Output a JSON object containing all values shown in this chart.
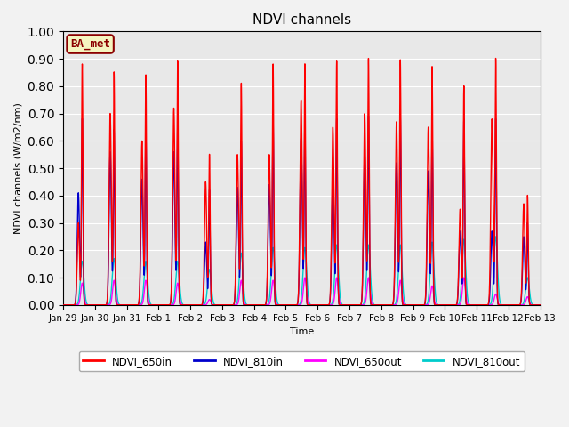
{
  "title": "NDVI channels",
  "ylabel": "NDVI channels (W/m2/nm)",
  "xlabel": "Time",
  "ylim": [
    0.0,
    1.0
  ],
  "yticks": [
    0.0,
    0.1,
    0.2,
    0.3,
    0.4,
    0.5,
    0.6,
    0.7,
    0.8,
    0.9,
    1.0
  ],
  "axes_facecolor": "#e8e8e8",
  "fig_facecolor": "#f2f2f2",
  "annotation_text": "BA_met",
  "annotation_color": "#8b0000",
  "annotation_bg": "#f5f5c0",
  "colors": {
    "NDVI_650in": "#ff0000",
    "NDVI_810in": "#0000cc",
    "NDVI_650out": "#ff00ff",
    "NDVI_810out": "#00cccc"
  },
  "num_days": 15,
  "peaks_650in": [
    0.88,
    0.85,
    0.84,
    0.89,
    0.55,
    0.81,
    0.88,
    0.88,
    0.89,
    0.9,
    0.895,
    0.87,
    0.8,
    0.9,
    0.4
  ],
  "peaks_810in": [
    0.68,
    0.64,
    0.64,
    0.67,
    0.42,
    0.6,
    0.67,
    0.68,
    0.68,
    0.69,
    0.69,
    0.66,
    0.68,
    0.68,
    0.3
  ],
  "peaks_650out": [
    0.08,
    0.09,
    0.09,
    0.08,
    0.02,
    0.09,
    0.09,
    0.1,
    0.1,
    0.1,
    0.09,
    0.07,
    0.1,
    0.04,
    0.03
  ],
  "peaks_810out": [
    0.16,
    0.17,
    0.16,
    0.16,
    0.13,
    0.19,
    0.21,
    0.21,
    0.22,
    0.22,
    0.22,
    0.23,
    0.24,
    0.25,
    0.1
  ],
  "secondary_650in": [
    0.3,
    0.7,
    0.6,
    0.72,
    0.45,
    0.55,
    0.55,
    0.75,
    0.65,
    0.7,
    0.67,
    0.65,
    0.35,
    0.68,
    0.37
  ],
  "secondary_810in": [
    0.41,
    0.56,
    0.46,
    0.56,
    0.23,
    0.43,
    0.44,
    0.61,
    0.48,
    0.55,
    0.52,
    0.49,
    0.27,
    0.27,
    0.25
  ],
  "xtick_labels": [
    "Jan 29",
    "Jan 30",
    "Jan 31",
    "Feb 1",
    "Feb 2",
    "Feb 3",
    "Feb 4",
    "Feb 5",
    "Feb 6",
    "Feb 7",
    "Feb 8",
    "Feb 9",
    "Feb 10",
    "Feb 11",
    "Feb 12",
    "Feb 13"
  ],
  "xtick_positions": [
    0,
    1,
    2,
    3,
    4,
    5,
    6,
    7,
    8,
    9,
    10,
    11,
    12,
    13,
    14,
    15
  ]
}
